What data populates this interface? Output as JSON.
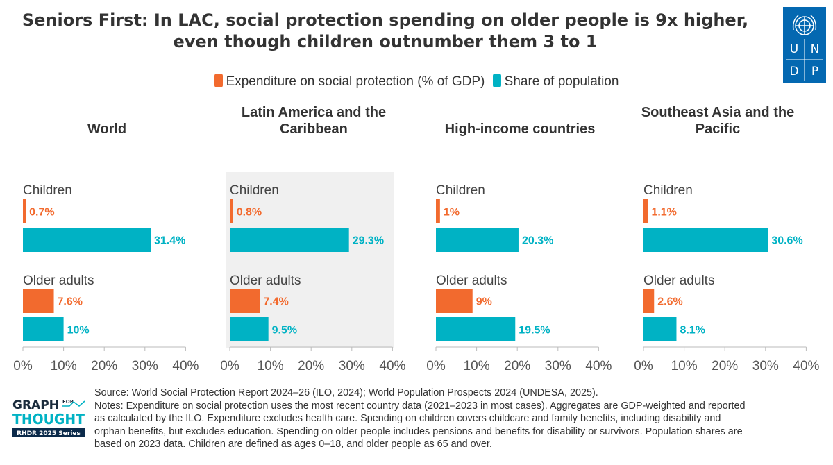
{
  "title": {
    "line1": "Seniors First: In LAC, social protection spending on older people is 9x higher,",
    "line2": "even though children outnumber them 3 to 1"
  },
  "logo": {
    "letters": [
      "U",
      "N",
      "D",
      "P"
    ]
  },
  "colors": {
    "expenditure": "#f26a2e",
    "population": "#00b2c4",
    "highlight_bg": "#f0f0f0",
    "axis": "#bbbbbb"
  },
  "chart_data": {
    "type": "bar",
    "orientation": "horizontal",
    "legend": {
      "position": "top-center"
    },
    "series": [
      {
        "key": "expenditure",
        "name": "Expenditure on social protection (% of GDP)"
      },
      {
        "key": "population",
        "name": "Share of population"
      }
    ],
    "groups": [
      "Children",
      "Older adults"
    ],
    "xlim": [
      0,
      40
    ],
    "xticks": [
      "0%",
      "10%",
      "20%",
      "30%",
      "40%"
    ],
    "panels": [
      {
        "title_lines": [
          "World"
        ],
        "children": {
          "expenditure": 0.7,
          "population": 31.4
        },
        "older": {
          "expenditure": 7.6,
          "population": 10
        },
        "labels": {
          "children_expenditure": "0.7%",
          "children_population": "31.4%",
          "older_expenditure": "7.6%",
          "older_population": "10%"
        },
        "highlight": false
      },
      {
        "title_lines": [
          "Latin America and the",
          "Caribbean"
        ],
        "children": {
          "expenditure": 0.8,
          "population": 29.3
        },
        "older": {
          "expenditure": 7.4,
          "population": 9.5
        },
        "labels": {
          "children_expenditure": "0.8%",
          "children_population": "29.3%",
          "older_expenditure": "7.4%",
          "older_population": "9.5%"
        },
        "highlight": true
      },
      {
        "title_lines": [
          "High-income countries"
        ],
        "children": {
          "expenditure": 1,
          "population": 20.3
        },
        "older": {
          "expenditure": 9,
          "population": 19.5
        },
        "labels": {
          "children_expenditure": "1%",
          "children_population": "20.3%",
          "older_expenditure": "9%",
          "older_population": "19.5%"
        },
        "highlight": false
      },
      {
        "title_lines": [
          "Southeast Asia and the",
          "Pacific"
        ],
        "children": {
          "expenditure": 1.1,
          "population": 30.6
        },
        "older": {
          "expenditure": 2.6,
          "population": 8.1
        },
        "labels": {
          "children_expenditure": "1.1%",
          "children_population": "30.6%",
          "older_expenditure": "2.6%",
          "older_population": "8.1%"
        },
        "highlight": false
      }
    ]
  },
  "notes": {
    "lines": [
      "Source: World Social Protection Report 2024–26 (ILO, 2024); World Population Prospects 2024 (UNDESA, 2025).",
      "Notes: Expenditure on social protection uses the most recent country data (2021–2023 in most cases). Aggregates are GDP-weighted and reported",
      "as calculated by the ILO. Expenditure excludes health care. Spending on children covers childcare and family benefits, including disability and",
      "orphan benefits, but excludes education. Spending on older people includes pensions and benefits for disability or survivors. Population shares are",
      "based on 2023 data. Children are defined as ages 0–18, and older people as 65 and over."
    ]
  },
  "footer_logo": {
    "line1": "GRAPH",
    "for_top": "FOR",
    "for_bottom": "",
    "line2": "THOUGHT",
    "series": "RHDR 2025 Series"
  }
}
